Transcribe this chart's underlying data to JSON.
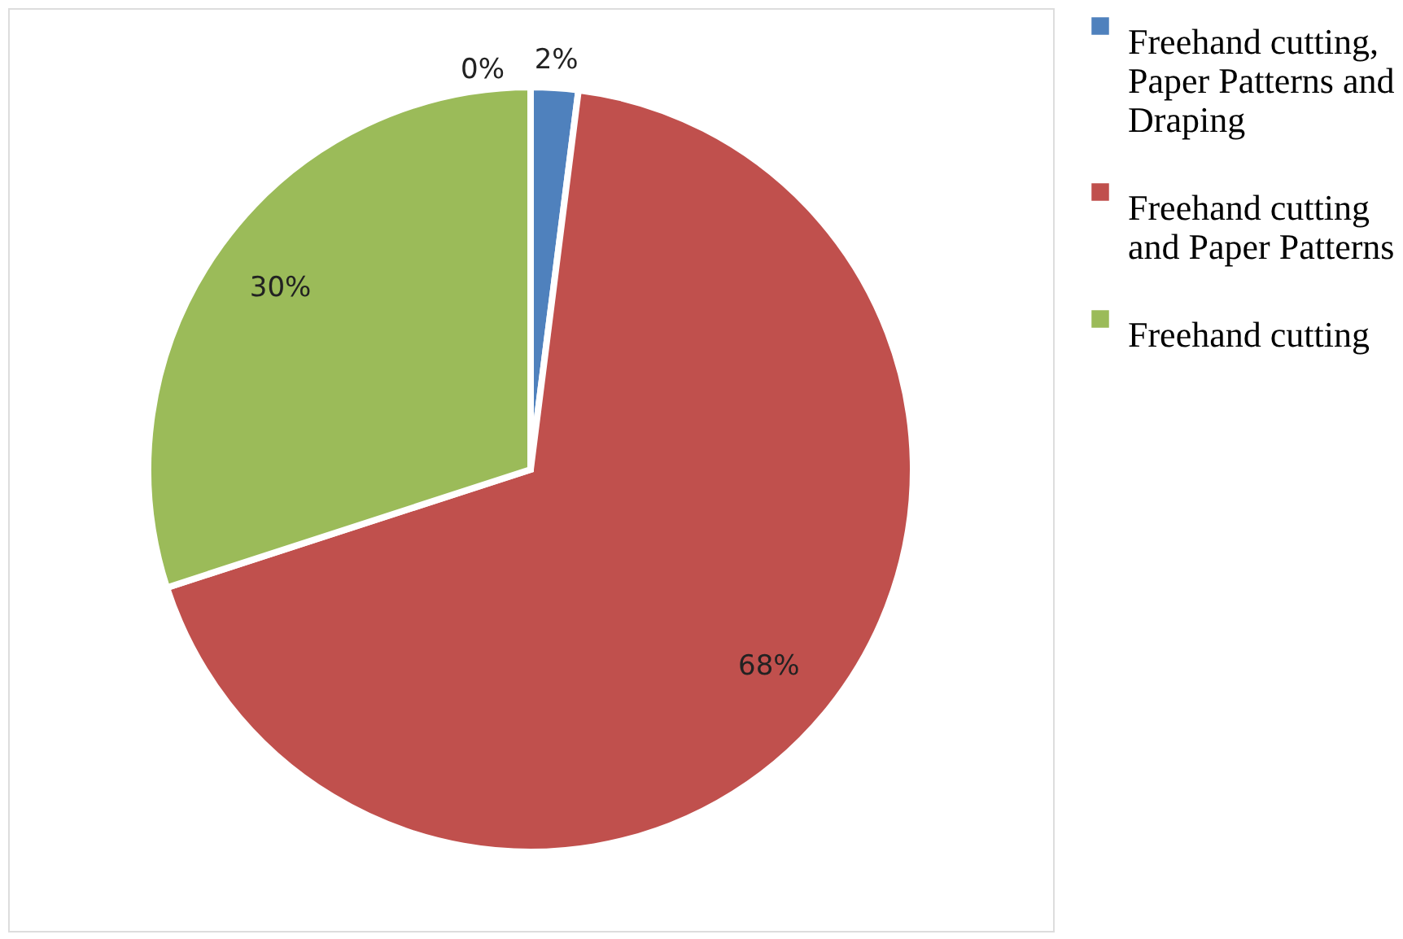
{
  "chart_data": {
    "type": "pie",
    "categories": [
      "Freehand cutting, Paper Patterns and Draping",
      "Freehand cutting and Paper Patterns",
      "Freehand cutting"
    ],
    "values": [
      2,
      68,
      30
    ],
    "colors": [
      "#4f81bd",
      "#c0504d",
      "#9bbb59"
    ],
    "value_labels": [
      "2%",
      "68%",
      "30%"
    ],
    "annotations": [
      "0%"
    ],
    "legend": "right"
  }
}
